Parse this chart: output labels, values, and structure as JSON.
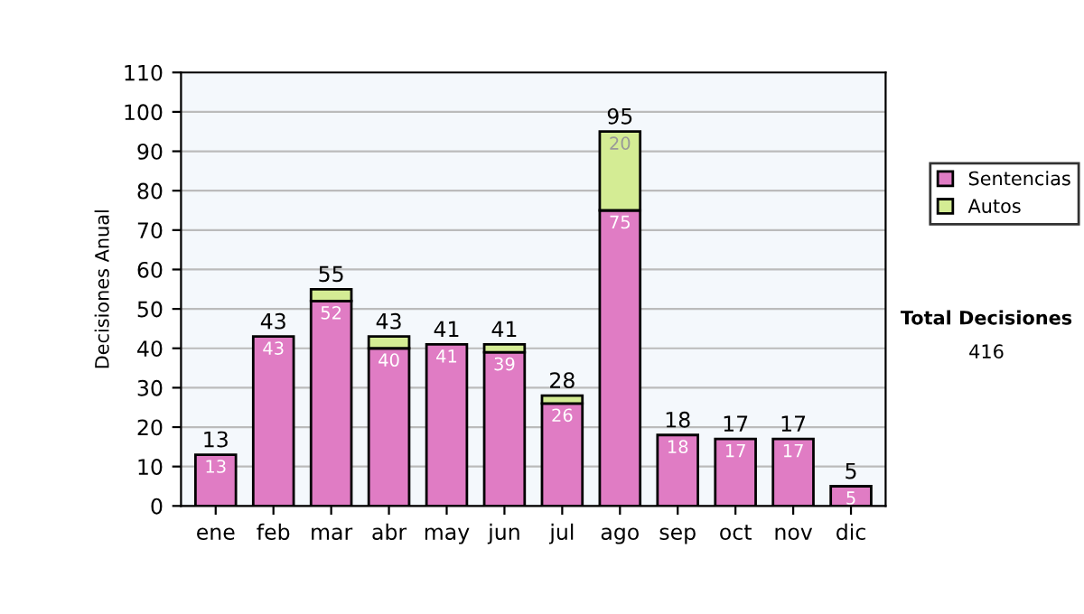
{
  "chart_data": {
    "type": "bar",
    "stacked": true,
    "ylabel": "Decisiones Anual",
    "categories": [
      "ene",
      "feb",
      "mar",
      "abr",
      "may",
      "jun",
      "jul",
      "ago",
      "sep",
      "oct",
      "nov",
      "dic"
    ],
    "series": [
      {
        "name": "Sentencias",
        "color": "#e07cc4",
        "values": [
          13,
          43,
          52,
          40,
          41,
          39,
          26,
          75,
          18,
          17,
          17,
          5
        ],
        "value_labels": [
          "13",
          "43",
          "52",
          "40",
          "41",
          "39",
          "26",
          "75",
          "18",
          "17",
          "17",
          "5"
        ]
      },
      {
        "name": "Autos",
        "color": "#d4ec94",
        "values": [
          null,
          null,
          3,
          3,
          null,
          2,
          2,
          20,
          null,
          null,
          null,
          null
        ],
        "value_labels": [
          null,
          null,
          null,
          null,
          null,
          null,
          null,
          "20",
          null,
          null,
          null,
          null
        ]
      }
    ],
    "totals": [
      "13",
      "43",
      "55",
      "43",
      "41",
      "41",
      "28",
      "95",
      "18",
      "17",
      "17",
      "5"
    ],
    "ylim": [
      0,
      110
    ],
    "yticks": [
      0,
      10,
      20,
      30,
      40,
      50,
      60,
      70,
      80,
      90,
      100,
      110
    ],
    "grid": "y",
    "legend": "right",
    "annotations": [
      "Total Decisiones",
      "416"
    ]
  }
}
